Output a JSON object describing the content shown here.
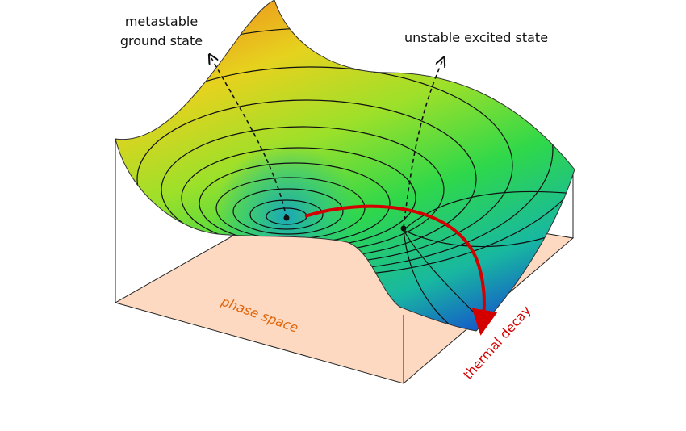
{
  "annotations": [
    {
      "lines": [
        "metastable",
        "ground state"
      ]
    },
    {
      "lines": [
        "unstable excited state"
      ]
    }
  ],
  "floor_label": "phase space",
  "arrow_label": "thermal decay"
}
